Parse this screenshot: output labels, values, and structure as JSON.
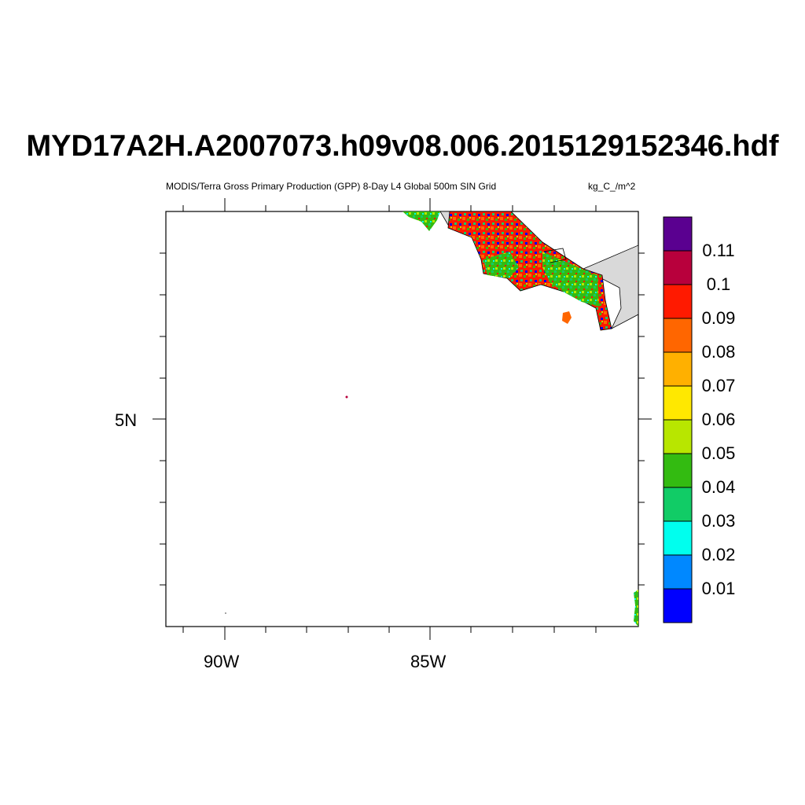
{
  "title": "MYD17A2H.A2007073.h09v08.006.2015129152346.hdf",
  "subtitle": "MODIS/Terra Gross Primary Production (GPP) 8-Day L4 Global 500m SIN Grid",
  "units": "kg_C_/m^2",
  "axes": {
    "lat_labels": [
      "5N"
    ],
    "lon_labels": [
      "90W",
      "85W"
    ]
  },
  "colorbar": {
    "labels": [
      "0.11",
      "0.1",
      "0.09",
      "0.08",
      "0.07",
      "0.06",
      "0.05",
      "0.04",
      "0.03",
      "0.02",
      "0.01"
    ],
    "colors_top_to_bottom": [
      "#5a0090",
      "#b8003c",
      "#ff1a00",
      "#ff6600",
      "#ffb000",
      "#ffe800",
      "#b8e600",
      "#33bb11",
      "#11cc66",
      "#00ffee",
      "#0088ff",
      "#0000ff"
    ]
  },
  "colors": {
    "land_no_data": "#d9d9d9",
    "frame": "#000000"
  }
}
